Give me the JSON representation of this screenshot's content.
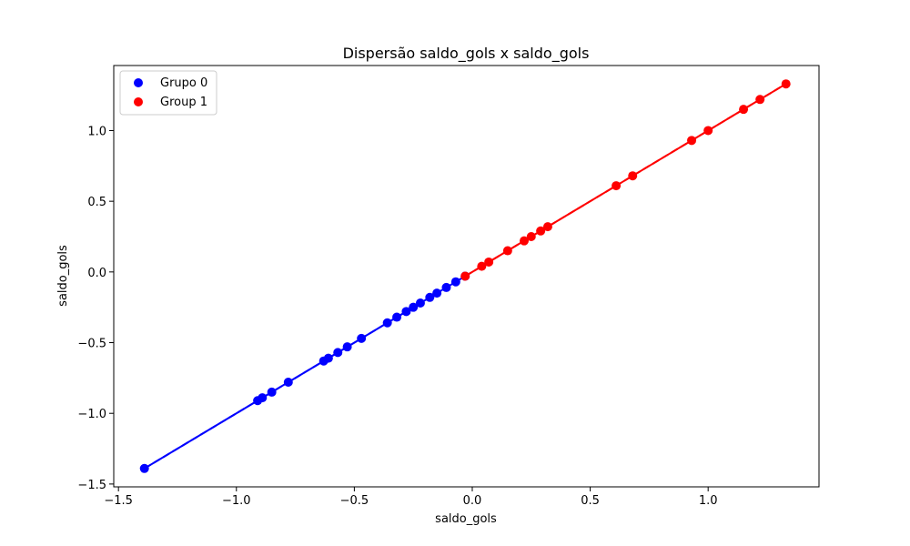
{
  "chart_data": {
    "type": "scatter",
    "title": "Dispersão saldo_gols x saldo_gols",
    "xlabel": "saldo_gols",
    "ylabel": "saldo_gols",
    "xlim": [
      -1.52,
      1.47
    ],
    "ylim": [
      -1.52,
      1.46
    ],
    "xticks": [
      -1.5,
      -1.0,
      -0.5,
      0.0,
      0.5,
      1.0
    ],
    "xtick_labels": [
      "−1.5",
      "−1.0",
      "−0.5",
      "0.0",
      "0.5",
      "1.0"
    ],
    "yticks": [
      -1.5,
      -1.0,
      -0.5,
      0.0,
      0.5,
      1.0
    ],
    "ytick_labels": [
      "−1.5",
      "−1.0",
      "−0.5",
      "0.0",
      "0.5",
      "1.0"
    ],
    "grid": false,
    "legend_position": "top-left",
    "series": [
      {
        "name": "Grupo 0",
        "color": "#0000ff",
        "x": [
          -1.39,
          -0.91,
          -0.89,
          -0.85,
          -0.78,
          -0.63,
          -0.61,
          -0.57,
          -0.53,
          -0.47,
          -0.36,
          -0.32,
          -0.28,
          -0.25,
          -0.22,
          -0.18,
          -0.15,
          -0.11,
          -0.07,
          -0.03
        ],
        "y": [
          -1.39,
          -0.91,
          -0.89,
          -0.85,
          -0.78,
          -0.63,
          -0.61,
          -0.57,
          -0.53,
          -0.47,
          -0.36,
          -0.32,
          -0.28,
          -0.25,
          -0.22,
          -0.18,
          -0.15,
          -0.11,
          -0.07,
          -0.03
        ]
      },
      {
        "name": "Group 1",
        "color": "#ff0000",
        "x": [
          -0.03,
          0.04,
          0.07,
          0.15,
          0.22,
          0.25,
          0.29,
          0.32,
          0.61,
          0.68,
          0.93,
          1.0,
          1.15,
          1.22,
          1.33
        ],
        "y": [
          -0.03,
          0.04,
          0.07,
          0.15,
          0.22,
          0.25,
          0.29,
          0.32,
          0.61,
          0.68,
          0.93,
          1.0,
          1.15,
          1.22,
          1.33
        ]
      }
    ],
    "trend_lines": [
      {
        "series": "Grupo 0",
        "style": "dashed",
        "color": "#0000ff"
      },
      {
        "series": "Group 1",
        "style": "dashed",
        "color": "#ff0000"
      }
    ]
  }
}
